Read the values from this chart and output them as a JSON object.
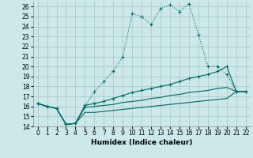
{
  "xlabel": "Humidex (Indice chaleur)",
  "bg_color": "#cce8e8",
  "grid_color": "#aacccc",
  "line_color": "#006666",
  "xlim": [
    -0.5,
    22.5
  ],
  "ylim": [
    14,
    26.5
  ],
  "xticks": [
    0,
    1,
    2,
    3,
    4,
    5,
    6,
    7,
    8,
    9,
    10,
    11,
    12,
    13,
    14,
    15,
    16,
    17,
    18,
    19,
    20,
    21,
    22
  ],
  "yticks": [
    14,
    15,
    16,
    17,
    18,
    19,
    20,
    21,
    22,
    23,
    24,
    25,
    26
  ],
  "series": [
    {
      "x": [
        0,
        1,
        2,
        3,
        4,
        5,
        6,
        7,
        8,
        9,
        10,
        11,
        12,
        13,
        14,
        15,
        16,
        17,
        18,
        19,
        20,
        21,
        22
      ],
      "y": [
        16.3,
        16.0,
        15.8,
        14.2,
        14.3,
        16.0,
        17.5,
        18.5,
        19.5,
        21.0,
        25.3,
        25.0,
        24.2,
        25.8,
        26.2,
        25.5,
        26.3,
        23.2,
        20.0,
        20.0,
        19.2,
        17.5,
        17.5
      ],
      "linestyle": "dotted",
      "marker": "+"
    },
    {
      "x": [
        0,
        1,
        2,
        3,
        4,
        5,
        6,
        7,
        8,
        9,
        10,
        11,
        12,
        13,
        14,
        15,
        16,
        17,
        18,
        19,
        20,
        21,
        22
      ],
      "y": [
        16.3,
        16.0,
        15.8,
        14.2,
        14.3,
        16.1,
        16.3,
        16.5,
        16.8,
        17.1,
        17.4,
        17.6,
        17.8,
        18.0,
        18.2,
        18.5,
        18.8,
        19.0,
        19.2,
        19.5,
        20.0,
        17.5,
        17.5
      ],
      "linestyle": "solid",
      "marker": "+"
    },
    {
      "x": [
        0,
        1,
        2,
        3,
        4,
        5,
        6,
        7,
        8,
        9,
        10,
        11,
        12,
        13,
        14,
        15,
        16,
        17,
        18,
        19,
        20,
        21,
        22
      ],
      "y": [
        16.3,
        16.0,
        15.8,
        14.2,
        14.3,
        15.9,
        16.0,
        16.1,
        16.2,
        16.4,
        16.5,
        16.6,
        16.8,
        16.9,
        17.1,
        17.2,
        17.4,
        17.5,
        17.6,
        17.8,
        17.9,
        17.5,
        17.5
      ],
      "linestyle": "solid",
      "marker": null
    },
    {
      "x": [
        0,
        1,
        2,
        3,
        4,
        5,
        6,
        7,
        8,
        9,
        10,
        11,
        12,
        13,
        14,
        15,
        16,
        17,
        18,
        19,
        20,
        21,
        22
      ],
      "y": [
        16.3,
        16.0,
        15.8,
        14.2,
        14.3,
        15.4,
        15.4,
        15.5,
        15.6,
        15.7,
        15.8,
        15.9,
        16.0,
        16.1,
        16.2,
        16.3,
        16.4,
        16.5,
        16.6,
        16.7,
        16.8,
        17.5,
        17.5
      ],
      "linestyle": "solid",
      "marker": null
    }
  ]
}
